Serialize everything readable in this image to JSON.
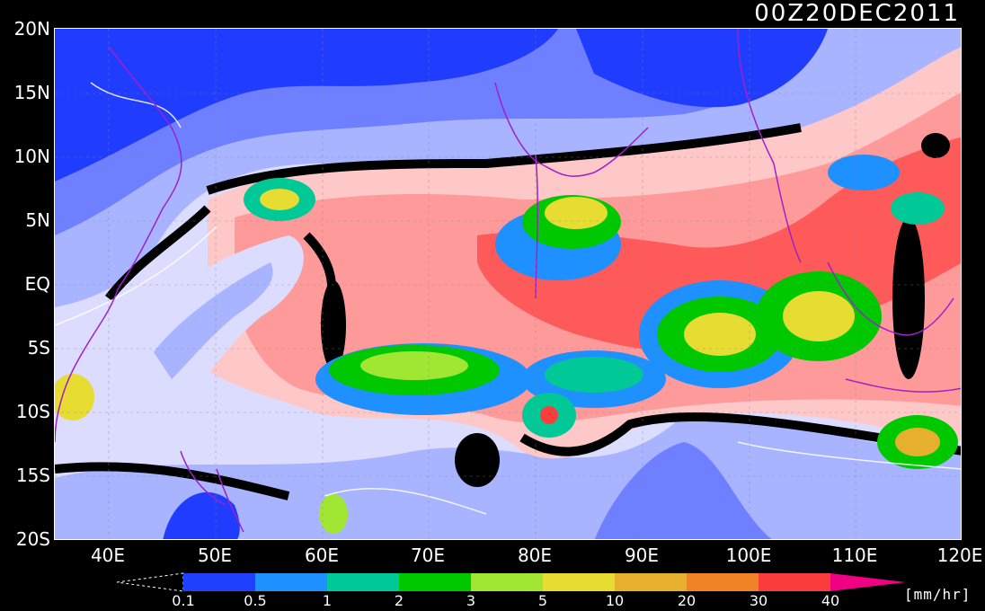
{
  "title": "00Z20DEC2011",
  "y_ticks": [
    "20N",
    "15N",
    "10N",
    "5N",
    "EQ",
    "5S",
    "10S",
    "15S",
    "20S"
  ],
  "x_ticks": [
    "40E",
    "50E",
    "60E",
    "70E",
    "80E",
    "90E",
    "100E",
    "110E",
    "120E"
  ],
  "colorbar": {
    "labels": [
      "0.1",
      "0.5",
      "1",
      "2",
      "3",
      "5",
      "10",
      "20",
      "30",
      "40"
    ],
    "colors": [
      "#2040ff",
      "#1e90ff",
      "#00c896",
      "#00c800",
      "#a0e632",
      "#e6dc32",
      "#e6af2d",
      "#f08228",
      "#fa3c3c",
      "#f00082"
    ],
    "unit": "[mm/hr]"
  },
  "map": {
    "region": {
      "lon": [
        35,
        120
      ],
      "lat": [
        -20,
        20
      ]
    },
    "colors": {
      "dry_deep": "#1f3cff",
      "dry_mid": "#6e80ff",
      "dry_light": "#a8b4ff",
      "pale": "#dcdcff",
      "moist_pink": "#ffc8c8",
      "moist_salmon": "#ff9a9a",
      "moist_red": "#ff5a5a",
      "null": "#000000",
      "coast": "#a020c8"
    }
  }
}
